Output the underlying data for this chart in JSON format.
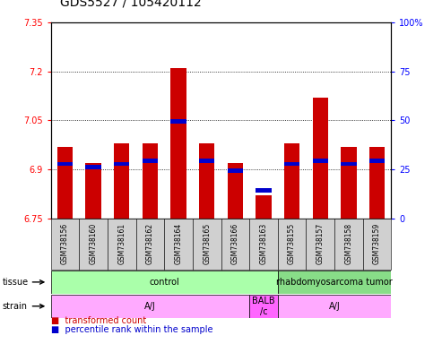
{
  "title": "GDS5527 / 105420112",
  "samples": [
    "GSM738156",
    "GSM738160",
    "GSM738161",
    "GSM738162",
    "GSM738164",
    "GSM738165",
    "GSM738166",
    "GSM738163",
    "GSM738155",
    "GSM738157",
    "GSM738158",
    "GSM738159"
  ],
  "red_values": [
    6.97,
    6.92,
    6.98,
    6.98,
    7.21,
    6.98,
    6.92,
    6.82,
    6.98,
    7.12,
    6.97,
    6.97
  ],
  "blue_values": [
    6.91,
    6.9,
    6.91,
    6.92,
    7.04,
    6.92,
    6.89,
    6.83,
    6.91,
    6.92,
    6.91,
    6.92
  ],
  "ymin": 6.75,
  "ymax": 7.35,
  "y_ticks_left": [
    6.75,
    6.9,
    7.05,
    7.2,
    7.35
  ],
  "y_ticks_right_vals": [
    0,
    25,
    50,
    75,
    100
  ],
  "y_ticks_right_labels": [
    "0",
    "25",
    "50",
    "75",
    "100%"
  ],
  "bar_width": 0.55,
  "red_color": "#cc0000",
  "blue_color": "#0000cc",
  "tissue_groups": [
    {
      "label": "control",
      "start": 0,
      "end": 7,
      "color": "#aaffaa"
    },
    {
      "label": "rhabdomyosarcoma tumor",
      "start": 8,
      "end": 11,
      "color": "#88dd88"
    }
  ],
  "strain_groups": [
    {
      "label": "A/J",
      "start": 0,
      "end": 6,
      "color": "#ffaaff"
    },
    {
      "label": "BALB\n/c",
      "start": 7,
      "end": 7,
      "color": "#ff66ff"
    },
    {
      "label": "A/J",
      "start": 8,
      "end": 11,
      "color": "#ffaaff"
    }
  ],
  "bg_color": "#d0d0d0",
  "plot_bg": "#ffffff",
  "title_fontsize": 10,
  "tick_fontsize": 7,
  "sample_fontsize": 5.5,
  "row_fontsize": 7,
  "legend_fontsize": 7
}
